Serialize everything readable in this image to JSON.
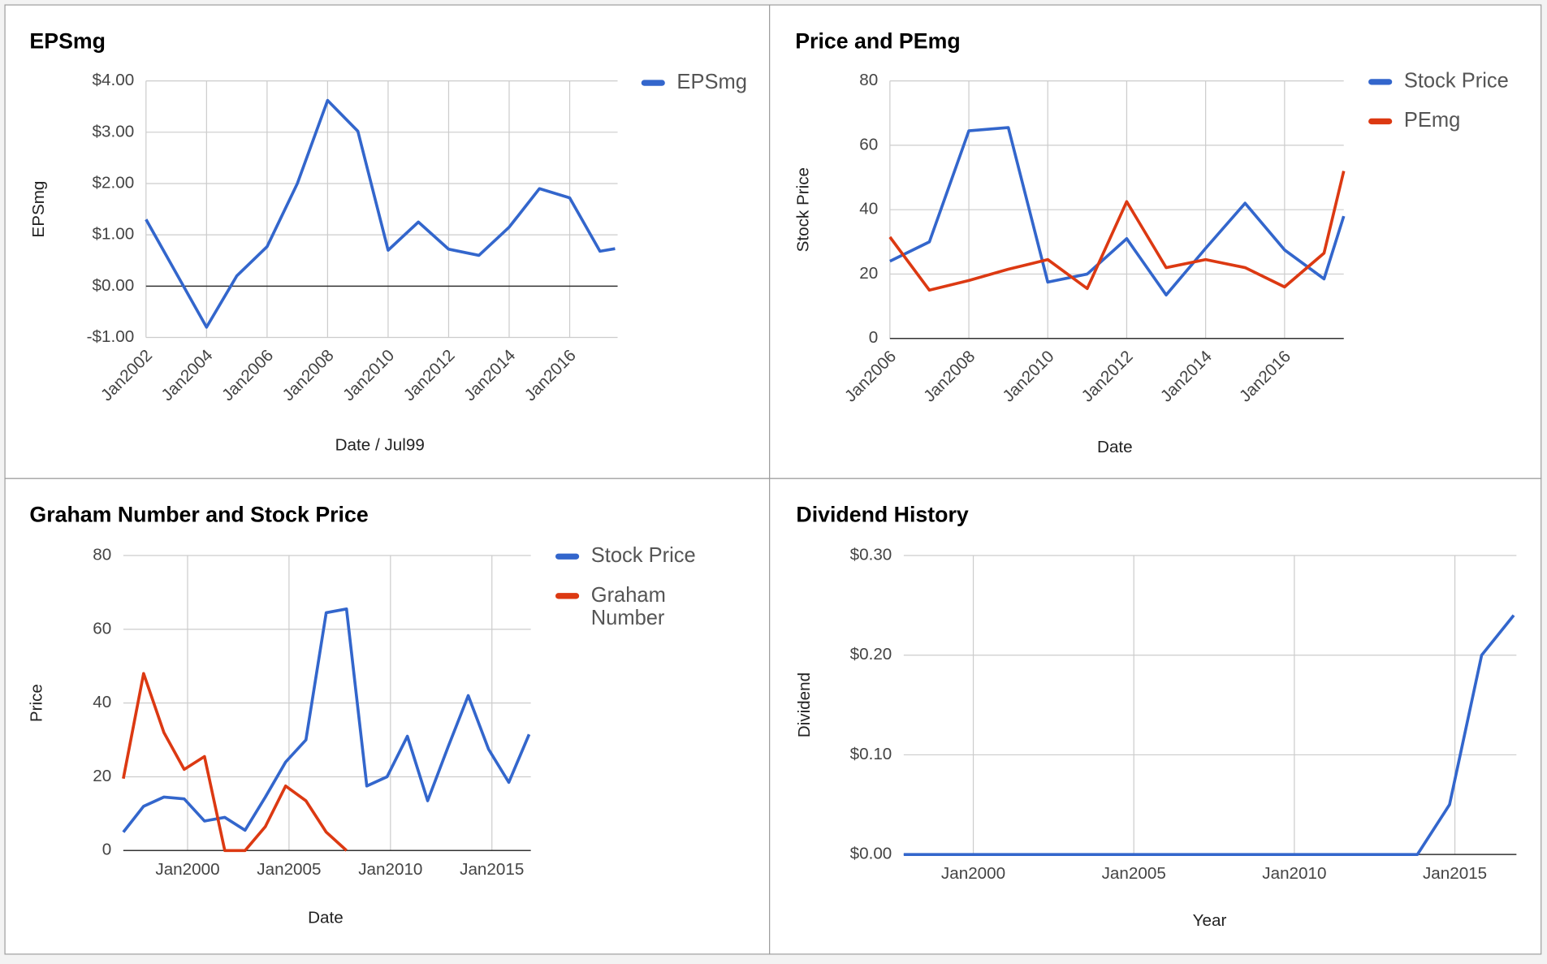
{
  "chart_data": [
    {
      "type": "line",
      "title": "EPSmg",
      "xlabel": "Date / Jul99",
      "ylabel": "EPSmg",
      "legend": "right",
      "grid": true,
      "x": [
        "2002-01",
        "2003-01",
        "2004-01",
        "2005-01",
        "2006-01",
        "2007-01",
        "2008-01",
        "2009-01",
        "2010-01",
        "2011-01",
        "2012-01",
        "2013-01",
        "2014-01",
        "2015-01",
        "2016-01",
        "2017-01",
        "2017-07"
      ],
      "series": [
        {
          "name": "EPSmg",
          "color": "#3366cc",
          "values": [
            1.3,
            0.25,
            -0.8,
            0.2,
            0.77,
            2.0,
            3.62,
            3.02,
            0.7,
            1.25,
            0.72,
            0.6,
            1.15,
            1.9,
            1.72,
            0.68,
            0.73
          ]
        }
      ],
      "xlim": [
        "2002-01",
        "2017-08"
      ],
      "xticks": [
        {
          "value": "2002-01",
          "label": "Jan2002"
        },
        {
          "value": "2004-01",
          "label": "Jan2004"
        },
        {
          "value": "2006-01",
          "label": "Jan2006"
        },
        {
          "value": "2008-01",
          "label": "Jan2008"
        },
        {
          "value": "2010-01",
          "label": "Jan2010"
        },
        {
          "value": "2012-01",
          "label": "Jan2012"
        },
        {
          "value": "2014-01",
          "label": "Jan2014"
        },
        {
          "value": "2016-01",
          "label": "Jan2016"
        }
      ],
      "ylim": [
        -1,
        4
      ],
      "yticks": [
        {
          "value": -1,
          "label": "-$1.00"
        },
        {
          "value": 0,
          "label": "$0.00"
        },
        {
          "value": 1,
          "label": "$1.00"
        },
        {
          "value": 2,
          "label": "$2.00"
        },
        {
          "value": 3,
          "label": "$3.00"
        },
        {
          "value": 4,
          "label": "$4.00"
        }
      ]
    },
    {
      "type": "line",
      "title": "Price and PEmg",
      "xlabel": "Date",
      "ylabel": "Stock Price",
      "legend": "right",
      "grid": true,
      "x": [
        "2006-01",
        "2007-01",
        "2008-01",
        "2009-01",
        "2010-01",
        "2011-01",
        "2012-01",
        "2013-01",
        "2014-01",
        "2015-01",
        "2016-01",
        "2017-01",
        "2017-07"
      ],
      "series": [
        {
          "name": "Stock Price",
          "color": "#3366cc",
          "values": [
            24,
            30,
            64.5,
            65.5,
            17.5,
            20,
            31,
            13.5,
            28,
            42,
            27.5,
            18.5,
            38
          ]
        },
        {
          "name": "PEmg",
          "color": "#dc3912",
          "values": [
            31.5,
            15,
            18,
            21.5,
            24.5,
            15.5,
            42.5,
            22,
            24.5,
            22,
            16,
            26.5,
            52
          ]
        }
      ],
      "xlim": [
        "2006-01",
        "2017-07"
      ],
      "xticks": [
        {
          "value": "2006-01",
          "label": "Jan2006"
        },
        {
          "value": "2008-01",
          "label": "Jan2008"
        },
        {
          "value": "2010-01",
          "label": "Jan2010"
        },
        {
          "value": "2012-01",
          "label": "Jan2012"
        },
        {
          "value": "2014-01",
          "label": "Jan2014"
        },
        {
          "value": "2016-01",
          "label": "Jan2016"
        }
      ],
      "ylim": [
        0,
        80
      ],
      "yticks": [
        0,
        20,
        40,
        60,
        80
      ]
    },
    {
      "type": "line",
      "title": "Graham Number and Stock Price",
      "xlabel": "Date",
      "ylabel": "Price",
      "legend": "right",
      "grid": true,
      "x": [
        "1996-11",
        "1997-11",
        "1998-11",
        "1999-11",
        "2000-11",
        "2001-11",
        "2002-11",
        "2003-11",
        "2004-11",
        "2005-11",
        "2006-11",
        "2007-11",
        "2008-11",
        "2009-11",
        "2010-11",
        "2011-11",
        "2012-11",
        "2013-11",
        "2014-11",
        "2015-11",
        "2016-11"
      ],
      "series": [
        {
          "name": "Stock Price",
          "color": "#3366cc",
          "values": [
            5,
            12,
            14.5,
            14,
            8,
            9,
            5.5,
            14.5,
            24,
            30,
            64.5,
            65.5,
            17.5,
            20,
            31,
            13.5,
            28,
            42,
            27.5,
            18.5,
            31.5
          ]
        },
        {
          "name": "Graham Number",
          "color": "#dc3912",
          "values": [
            19.5,
            48,
            32,
            22,
            25.5,
            0,
            0,
            6.5,
            17.5,
            13.5,
            5,
            0,
            null,
            null,
            null,
            null,
            null,
            null,
            null,
            null,
            null
          ]
        }
      ],
      "xlim": [
        "1996-11",
        "2016-12"
      ],
      "xticks": [
        {
          "value": "2000-01",
          "label": "Jan2000"
        },
        {
          "value": "2005-01",
          "label": "Jan2005"
        },
        {
          "value": "2010-01",
          "label": "Jan2010"
        },
        {
          "value": "2015-01",
          "label": "Jan2015"
        }
      ],
      "ylim": [
        0,
        80
      ],
      "yticks": [
        0,
        20,
        40,
        60,
        80
      ]
    },
    {
      "type": "line",
      "title": "Dividend History",
      "xlabel": "Year",
      "ylabel": "Dividend",
      "grid": true,
      "x": [
        "1997-11",
        "1998-11",
        "1999-11",
        "2000-11",
        "2001-11",
        "2002-11",
        "2003-11",
        "2004-11",
        "2005-11",
        "2006-11",
        "2007-11",
        "2008-11",
        "2009-11",
        "2010-11",
        "2011-11",
        "2012-11",
        "2013-11",
        "2014-11",
        "2015-11",
        "2016-11"
      ],
      "series": [
        {
          "color": "#3366cc",
          "values": [
            0,
            0,
            0,
            0,
            0,
            0,
            0,
            0,
            0,
            0,
            0,
            0,
            0,
            0,
            0,
            0,
            0,
            0.05,
            0.2,
            0.24
          ]
        }
      ],
      "xlim": [
        "1997-11",
        "2016-12"
      ],
      "xticks": [
        {
          "value": "2000-01",
          "label": "Jan2000"
        },
        {
          "value": "2005-01",
          "label": "Jan2005"
        },
        {
          "value": "2010-01",
          "label": "Jan2010"
        },
        {
          "value": "2015-01",
          "label": "Jan2015"
        }
      ],
      "ylim": [
        0,
        0.3
      ],
      "yticks": [
        {
          "value": 0,
          "label": "$0.00"
        },
        {
          "value": 0.1,
          "label": "$0.10"
        },
        {
          "value": 0.2,
          "label": "$0.20"
        },
        {
          "value": 0.3,
          "label": "$0.30"
        }
      ]
    }
  ]
}
